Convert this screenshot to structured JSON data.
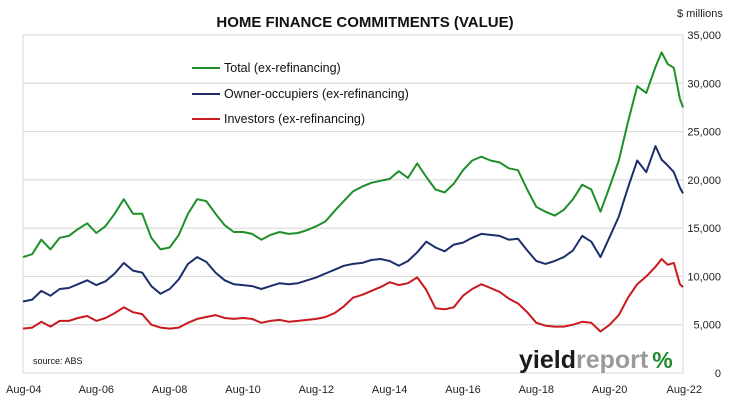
{
  "chart_data": {
    "type": "line",
    "title": "HOME FINANCE COMMITMENTS (VALUE)",
    "ylabel": "$ millions",
    "ylim": [
      0,
      35000
    ],
    "yticks": [
      "0",
      "5,000",
      "10,000",
      "15,000",
      "20,000",
      "25,000",
      "30,000",
      "35,000"
    ],
    "xticks": [
      "Aug-04",
      "Aug-06",
      "Aug-08",
      "Aug-10",
      "Aug-12",
      "Aug-14",
      "Aug-16",
      "Aug-18",
      "Aug-20",
      "Aug-22"
    ],
    "grid": "horizontal",
    "legend_position": "top-left",
    "source": "source: ABS",
    "logo": {
      "part1": "yield",
      "part2": "report",
      "part3": "%"
    },
    "series": [
      {
        "name": "Total (ex-refinancing)",
        "color": "#1f8f2a",
        "points": [
          [
            "2004-08",
            12000
          ],
          [
            "2004-11",
            12300
          ],
          [
            "2005-02",
            13800
          ],
          [
            "2005-05",
            12800
          ],
          [
            "2005-08",
            14000
          ],
          [
            "2005-11",
            14200
          ],
          [
            "2006-02",
            14900
          ],
          [
            "2006-05",
            15500
          ],
          [
            "2006-08",
            14500
          ],
          [
            "2006-11",
            15200
          ],
          [
            "2007-02",
            16500
          ],
          [
            "2007-05",
            18000
          ],
          [
            "2007-08",
            16500
          ],
          [
            "2007-11",
            16500
          ],
          [
            "2008-02",
            14000
          ],
          [
            "2008-05",
            12800
          ],
          [
            "2008-08",
            13000
          ],
          [
            "2008-11",
            14300
          ],
          [
            "2009-02",
            16500
          ],
          [
            "2009-05",
            18000
          ],
          [
            "2009-08",
            17800
          ],
          [
            "2009-11",
            16500
          ],
          [
            "2010-02",
            15300
          ],
          [
            "2010-05",
            14600
          ],
          [
            "2010-08",
            14600
          ],
          [
            "2010-11",
            14400
          ],
          [
            "2011-02",
            13800
          ],
          [
            "2011-05",
            14300
          ],
          [
            "2011-08",
            14600
          ],
          [
            "2011-11",
            14400
          ],
          [
            "2012-02",
            14500
          ],
          [
            "2012-05",
            14800
          ],
          [
            "2012-08",
            15200
          ],
          [
            "2012-11",
            15700
          ],
          [
            "2013-02",
            16800
          ],
          [
            "2013-05",
            17800
          ],
          [
            "2013-08",
            18800
          ],
          [
            "2013-11",
            19300
          ],
          [
            "2014-02",
            19700
          ],
          [
            "2014-05",
            19900
          ],
          [
            "2014-08",
            20100
          ],
          [
            "2014-11",
            20900
          ],
          [
            "2015-02",
            20200
          ],
          [
            "2015-05",
            21700
          ],
          [
            "2015-08",
            20300
          ],
          [
            "2015-11",
            19000
          ],
          [
            "2016-02",
            18700
          ],
          [
            "2016-05",
            19600
          ],
          [
            "2016-08",
            21000
          ],
          [
            "2016-11",
            22000
          ],
          [
            "2017-02",
            22400
          ],
          [
            "2017-05",
            22000
          ],
          [
            "2017-08",
            21800
          ],
          [
            "2017-11",
            21200
          ],
          [
            "2018-02",
            21000
          ],
          [
            "2018-05",
            19000
          ],
          [
            "2018-08",
            17200
          ],
          [
            "2018-11",
            16700
          ],
          [
            "2019-02",
            16300
          ],
          [
            "2019-05",
            16900
          ],
          [
            "2019-08",
            18000
          ],
          [
            "2019-11",
            19500
          ],
          [
            "2020-02",
            19000
          ],
          [
            "2020-05",
            16700
          ],
          [
            "2020-08",
            19300
          ],
          [
            "2020-11",
            22000
          ],
          [
            "2021-02",
            26000
          ],
          [
            "2021-05",
            29700
          ],
          [
            "2021-08",
            29000
          ],
          [
            "2021-11",
            31700
          ],
          [
            "2022-01",
            33200
          ],
          [
            "2022-03",
            32000
          ],
          [
            "2022-05",
            31600
          ],
          [
            "2022-07",
            28400
          ],
          [
            "2022-08",
            27500
          ]
        ]
      },
      {
        "name": "Owner-occupiers (ex-refinancing)",
        "color": "#1d2f6b",
        "points": [
          [
            "2004-08",
            7400
          ],
          [
            "2004-11",
            7600
          ],
          [
            "2005-02",
            8500
          ],
          [
            "2005-05",
            8000
          ],
          [
            "2005-08",
            8700
          ],
          [
            "2005-11",
            8800
          ],
          [
            "2006-02",
            9200
          ],
          [
            "2006-05",
            9600
          ],
          [
            "2006-08",
            9100
          ],
          [
            "2006-11",
            9500
          ],
          [
            "2007-02",
            10300
          ],
          [
            "2007-05",
            11400
          ],
          [
            "2007-08",
            10600
          ],
          [
            "2007-11",
            10400
          ],
          [
            "2008-02",
            9000
          ],
          [
            "2008-05",
            8200
          ],
          [
            "2008-08",
            8700
          ],
          [
            "2008-11",
            9700
          ],
          [
            "2009-02",
            11300
          ],
          [
            "2009-05",
            12000
          ],
          [
            "2009-08",
            11500
          ],
          [
            "2009-11",
            10400
          ],
          [
            "2010-02",
            9600
          ],
          [
            "2010-05",
            9200
          ],
          [
            "2010-08",
            9100
          ],
          [
            "2010-11",
            9000
          ],
          [
            "2011-02",
            8700
          ],
          [
            "2011-05",
            9000
          ],
          [
            "2011-08",
            9300
          ],
          [
            "2011-11",
            9200
          ],
          [
            "2012-02",
            9300
          ],
          [
            "2012-05",
            9600
          ],
          [
            "2012-08",
            9900
          ],
          [
            "2012-11",
            10300
          ],
          [
            "2013-02",
            10700
          ],
          [
            "2013-05",
            11100
          ],
          [
            "2013-08",
            11300
          ],
          [
            "2013-11",
            11400
          ],
          [
            "2014-02",
            11700
          ],
          [
            "2014-05",
            11800
          ],
          [
            "2014-08",
            11600
          ],
          [
            "2014-11",
            11100
          ],
          [
            "2015-02",
            11600
          ],
          [
            "2015-05",
            12500
          ],
          [
            "2015-08",
            13600
          ],
          [
            "2015-11",
            13000
          ],
          [
            "2016-02",
            12600
          ],
          [
            "2016-05",
            13300
          ],
          [
            "2016-08",
            13500
          ],
          [
            "2016-11",
            14000
          ],
          [
            "2017-02",
            14400
          ],
          [
            "2017-05",
            14300
          ],
          [
            "2017-08",
            14200
          ],
          [
            "2017-11",
            13800
          ],
          [
            "2018-02",
            13900
          ],
          [
            "2018-05",
            12700
          ],
          [
            "2018-08",
            11600
          ],
          [
            "2018-11",
            11300
          ],
          [
            "2019-02",
            11600
          ],
          [
            "2019-05",
            12000
          ],
          [
            "2019-08",
            12700
          ],
          [
            "2019-11",
            14200
          ],
          [
            "2020-02",
            13600
          ],
          [
            "2020-05",
            12000
          ],
          [
            "2020-08",
            14100
          ],
          [
            "2020-11",
            16200
          ],
          [
            "2021-02",
            19200
          ],
          [
            "2021-05",
            22000
          ],
          [
            "2021-08",
            20800
          ],
          [
            "2021-11",
            23500
          ],
          [
            "2022-01",
            22100
          ],
          [
            "2022-03",
            21500
          ],
          [
            "2022-05",
            20800
          ],
          [
            "2022-07",
            19200
          ],
          [
            "2022-08",
            18600
          ]
        ]
      },
      {
        "name": "Investors (ex-refinancing)",
        "color": "#c8191e",
        "points": [
          [
            "2004-08",
            4600
          ],
          [
            "2004-11",
            4700
          ],
          [
            "2005-02",
            5300
          ],
          [
            "2005-05",
            4800
          ],
          [
            "2005-08",
            5400
          ],
          [
            "2005-11",
            5400
          ],
          [
            "2006-02",
            5700
          ],
          [
            "2006-05",
            5900
          ],
          [
            "2006-08",
            5400
          ],
          [
            "2006-11",
            5700
          ],
          [
            "2007-02",
            6200
          ],
          [
            "2007-05",
            6800
          ],
          [
            "2007-08",
            6300
          ],
          [
            "2007-11",
            6100
          ],
          [
            "2008-02",
            5000
          ],
          [
            "2008-05",
            4700
          ],
          [
            "2008-08",
            4600
          ],
          [
            "2008-11",
            4700
          ],
          [
            "2009-02",
            5200
          ],
          [
            "2009-05",
            5600
          ],
          [
            "2009-08",
            5800
          ],
          [
            "2009-11",
            6000
          ],
          [
            "2010-02",
            5700
          ],
          [
            "2010-05",
            5600
          ],
          [
            "2010-08",
            5700
          ],
          [
            "2010-11",
            5600
          ],
          [
            "2011-02",
            5200
          ],
          [
            "2011-05",
            5400
          ],
          [
            "2011-08",
            5500
          ],
          [
            "2011-11",
            5300
          ],
          [
            "2012-02",
            5400
          ],
          [
            "2012-05",
            5500
          ],
          [
            "2012-08",
            5600
          ],
          [
            "2012-11",
            5800
          ],
          [
            "2013-02",
            6200
          ],
          [
            "2013-05",
            6900
          ],
          [
            "2013-08",
            7800
          ],
          [
            "2013-11",
            8100
          ],
          [
            "2014-02",
            8500
          ],
          [
            "2014-05",
            8900
          ],
          [
            "2014-08",
            9400
          ],
          [
            "2014-11",
            9100
          ],
          [
            "2015-02",
            9300
          ],
          [
            "2015-05",
            9900
          ],
          [
            "2015-08",
            8600
          ],
          [
            "2015-11",
            6700
          ],
          [
            "2016-02",
            6600
          ],
          [
            "2016-05",
            6800
          ],
          [
            "2016-08",
            8000
          ],
          [
            "2016-11",
            8700
          ],
          [
            "2017-02",
            9200
          ],
          [
            "2017-05",
            8800
          ],
          [
            "2017-08",
            8400
          ],
          [
            "2017-11",
            7700
          ],
          [
            "2018-02",
            7200
          ],
          [
            "2018-05",
            6300
          ],
          [
            "2018-08",
            5200
          ],
          [
            "2018-11",
            4900
          ],
          [
            "2019-02",
            4800
          ],
          [
            "2019-05",
            4800
          ],
          [
            "2019-08",
            5000
          ],
          [
            "2019-11",
            5300
          ],
          [
            "2020-02",
            5200
          ],
          [
            "2020-05",
            4300
          ],
          [
            "2020-08",
            5000
          ],
          [
            "2020-11",
            6000
          ],
          [
            "2021-02",
            7800
          ],
          [
            "2021-05",
            9200
          ],
          [
            "2021-08",
            10000
          ],
          [
            "2021-11",
            11000
          ],
          [
            "2022-01",
            11800
          ],
          [
            "2022-03",
            11200
          ],
          [
            "2022-05",
            11400
          ],
          [
            "2022-07",
            9200
          ],
          [
            "2022-08",
            8900
          ]
        ]
      }
    ]
  }
}
